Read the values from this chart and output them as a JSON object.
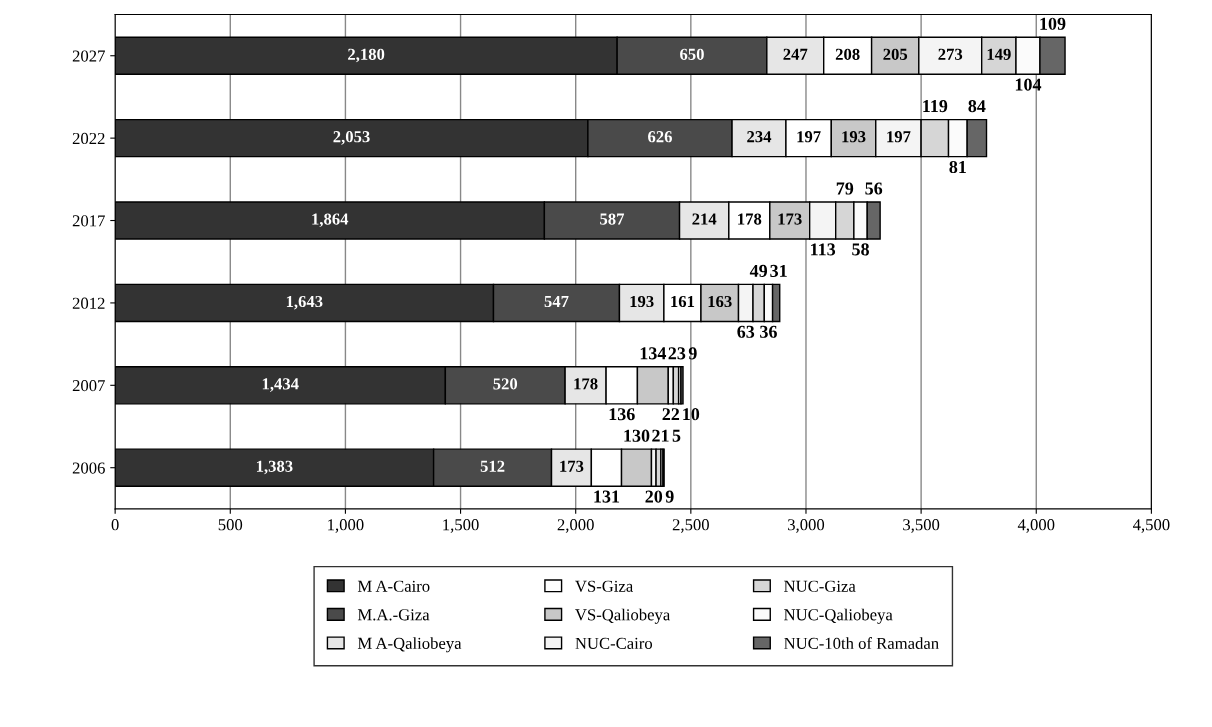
{
  "chart_data": {
    "type": "bar",
    "orientation": "horizontal",
    "stacked": true,
    "categories": [
      "2027",
      "2022",
      "2017",
      "2012",
      "2007",
      "2006"
    ],
    "series": [
      {
        "name": "M A-Cairo",
        "color": "#333333",
        "values": [
          2180,
          2053,
          1864,
          1643,
          1434,
          1383
        ],
        "value_labels": [
          "2,180",
          "2,053",
          "1,864",
          "1,643",
          "1,434",
          "1,383"
        ]
      },
      {
        "name": "M.A.-Giza",
        "color": "#4a4a4a",
        "values": [
          650,
          626,
          587,
          547,
          520,
          512
        ],
        "value_labels": [
          "650",
          "626",
          "587",
          "547",
          "520",
          "512"
        ]
      },
      {
        "name": "M A-Qaliobeya",
        "color": "#e6e6e6",
        "values": [
          247,
          234,
          214,
          193,
          178,
          173
        ],
        "value_labels": [
          "247",
          "234",
          "214",
          "193",
          "178",
          "173"
        ]
      },
      {
        "name": "VS-Giza",
        "color": "#ffffff",
        "values": [
          208,
          197,
          178,
          161,
          136,
          131
        ],
        "value_labels": [
          "208",
          "197",
          "178",
          "161",
          "136",
          "131"
        ]
      },
      {
        "name": "VS-Qaliobeya",
        "color": "#c8c8c8",
        "values": [
          205,
          193,
          173,
          163,
          134,
          130
        ],
        "value_labels": [
          "205",
          "193",
          "173",
          "163",
          "134",
          "130"
        ]
      },
      {
        "name": "NUC-Cairo",
        "color": "#f4f4f4",
        "values": [
          273,
          197,
          113,
          63,
          22,
          20
        ],
        "value_labels": [
          "273",
          "197",
          "113",
          "63",
          "22",
          "20"
        ]
      },
      {
        "name": "NUC-Giza",
        "color": "#d6d6d6",
        "values": [
          149,
          119,
          79,
          49,
          23,
          21
        ],
        "value_labels": [
          "149",
          "119",
          "79",
          "49",
          "23",
          "21"
        ]
      },
      {
        "name": "NUC-Qaliobeya",
        "color": "#fbfbfb",
        "values": [
          104,
          81,
          58,
          36,
          10,
          9
        ],
        "value_labels": [
          "104",
          "81",
          "58",
          "36",
          "10",
          "9"
        ]
      },
      {
        "name": "NUC-10th of Ramadan",
        "color": "#666666",
        "values": [
          109,
          84,
          56,
          31,
          9,
          5
        ],
        "value_labels": [
          "109",
          "84",
          "56",
          "31",
          "9",
          "5"
        ]
      }
    ],
    "xlim": [
      0,
      4500
    ],
    "xticks": [
      {
        "value": 0,
        "label": "0"
      },
      {
        "value": 500,
        "label": "500"
      },
      {
        "value": 1000,
        "label": "1,000"
      },
      {
        "value": 1500,
        "label": "1,500"
      },
      {
        "value": 2000,
        "label": "2,000"
      },
      {
        "value": 2500,
        "label": "2,500"
      },
      {
        "value": 3000,
        "label": "3,000"
      },
      {
        "value": 3500,
        "label": "3,500"
      },
      {
        "value": 4000,
        "label": "4,000"
      },
      {
        "value": 4500,
        "label": "4,500"
      }
    ],
    "grid": "x",
    "legend": "bottom"
  }
}
